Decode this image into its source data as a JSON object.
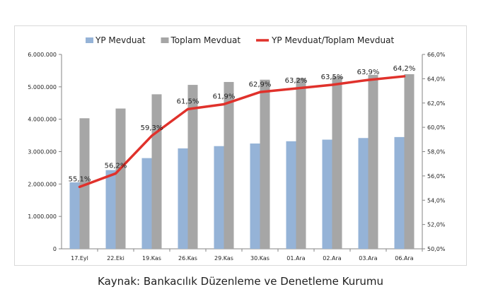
{
  "chart_data": {
    "type": "bar",
    "categories": [
      "17.Eyl",
      "22.Eki",
      "19.Kas",
      "26.Kas",
      "29.Kas",
      "30.Kas",
      "01.Ara",
      "02.Ara",
      "03.Ara",
      "06.Ara"
    ],
    "series": [
      {
        "name": "YP Mevduat",
        "type": "bar",
        "axis": "left",
        "color": "#95b3d7",
        "values": [
          2050000,
          2430000,
          2800000,
          3100000,
          3170000,
          3250000,
          3320000,
          3370000,
          3420000,
          3450000
        ]
      },
      {
        "name": "Toplam Mevduat",
        "type": "bar",
        "axis": "left",
        "color": "#a6a6a6",
        "values": [
          4030000,
          4330000,
          4770000,
          5060000,
          5150000,
          5220000,
          5270000,
          5320000,
          5370000,
          5390000
        ]
      },
      {
        "name": "YP Mevduat/Toplam Mevduat",
        "type": "line",
        "axis": "right",
        "color": "#e0312b",
        "values": [
          55.1,
          56.2,
          59.3,
          61.5,
          61.9,
          62.9,
          63.2,
          63.5,
          63.9,
          64.2
        ],
        "labels": [
          "55,1%",
          "56,2%",
          "59,3%",
          "61,5%",
          "61,9%",
          "62,9%",
          "63,2%",
          "63,5%",
          "63,9%",
          "64,2%"
        ]
      }
    ],
    "y_left": {
      "range": [
        0,
        6000000
      ],
      "ticks": [
        0,
        1000000,
        2000000,
        3000000,
        4000000,
        5000000,
        6000000
      ],
      "tick_labels": [
        "0",
        "1.000.000",
        "2.000.000",
        "3.000.000",
        "4.000.000",
        "5.000.000",
        "6.000.000"
      ]
    },
    "y_right": {
      "range": [
        50,
        66
      ],
      "ticks": [
        50,
        52,
        54,
        56,
        58,
        60,
        62,
        64,
        66
      ],
      "tick_labels": [
        "50,0%",
        "52,0%",
        "54,0%",
        "56,0%",
        "58,0%",
        "60,0%",
        "62,0%",
        "64,0%",
        "66,0%"
      ]
    },
    "legend": "top",
    "grid": false,
    "title": "",
    "xlabel": "",
    "ylabel": ""
  },
  "caption": "Kaynak: Bankacılık Düzenleme ve Denetleme Kurumu"
}
